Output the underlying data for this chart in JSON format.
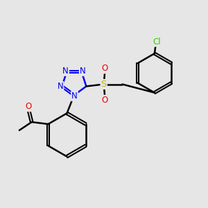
{
  "background_color": "#e6e6e6",
  "bond_color": "#000000",
  "bond_width": 1.8,
  "atom_colors": {
    "N": "#0000ee",
    "O": "#ee0000",
    "S": "#bbbb00",
    "Cl": "#33cc00",
    "C": "#000000"
  },
  "font_size_atom": 8.5,
  "font_size_small": 7.5
}
